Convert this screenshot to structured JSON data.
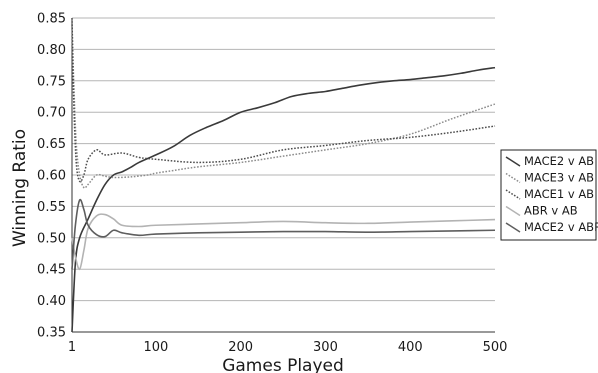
{
  "chart_data": {
    "type": "line",
    "title": "",
    "xlabel": "Games Played",
    "ylabel": "Winning Ratio",
    "xlim": [
      1,
      500
    ],
    "ylim": [
      0.35,
      0.85
    ],
    "xticks": [
      1,
      100,
      200,
      300,
      400,
      500
    ],
    "yticks": [
      0.35,
      0.4,
      0.45,
      0.5,
      0.55,
      0.6,
      0.65,
      0.7,
      0.75,
      0.8,
      0.85
    ],
    "grid": "horizontal",
    "legend_position": "right",
    "series": [
      {
        "name": "MACE2 v AB",
        "color": "#3a3a3a",
        "style": "solid",
        "x": [
          1,
          5,
          10,
          20,
          30,
          40,
          50,
          60,
          70,
          80,
          100,
          120,
          140,
          160,
          180,
          200,
          220,
          240,
          260,
          280,
          300,
          320,
          340,
          360,
          380,
          400,
          420,
          440,
          460,
          480,
          500
        ],
        "y": [
          0.35,
          0.46,
          0.5,
          0.53,
          0.56,
          0.585,
          0.6,
          0.605,
          0.612,
          0.62,
          0.632,
          0.645,
          0.663,
          0.676,
          0.687,
          0.7,
          0.707,
          0.715,
          0.725,
          0.73,
          0.733,
          0.738,
          0.743,
          0.747,
          0.75,
          0.752,
          0.755,
          0.758,
          0.762,
          0.767,
          0.771
        ]
      },
      {
        "name": "MACE3 v AB",
        "color": "#8c8c8c",
        "style": "dotted",
        "x": [
          1,
          3,
          6,
          10,
          15,
          20,
          30,
          40,
          50,
          70,
          90,
          100,
          120,
          150,
          200,
          250,
          300,
          350,
          400,
          450,
          500
        ],
        "y": [
          0.84,
          0.75,
          0.65,
          0.6,
          0.58,
          0.585,
          0.6,
          0.598,
          0.596,
          0.597,
          0.6,
          0.603,
          0.607,
          0.613,
          0.62,
          0.63,
          0.64,
          0.65,
          0.665,
          0.69,
          0.713
        ]
      },
      {
        "name": "MACE1 v AB",
        "color": "#4d4d4d",
        "style": "dotted",
        "x": [
          1,
          3,
          6,
          10,
          15,
          20,
          30,
          40,
          60,
          80,
          100,
          150,
          200,
          250,
          300,
          350,
          400,
          450,
          500
        ],
        "y": [
          0.85,
          0.72,
          0.62,
          0.59,
          0.6,
          0.625,
          0.64,
          0.632,
          0.635,
          0.628,
          0.625,
          0.62,
          0.625,
          0.64,
          0.647,
          0.655,
          0.66,
          0.668,
          0.678
        ]
      },
      {
        "name": "ABR v AB",
        "color": "#b3b3b3",
        "style": "solid",
        "x": [
          1,
          5,
          10,
          15,
          20,
          30,
          40,
          50,
          60,
          80,
          100,
          150,
          200,
          250,
          300,
          350,
          400,
          450,
          500
        ],
        "y": [
          0.5,
          0.47,
          0.45,
          0.48,
          0.515,
          0.535,
          0.537,
          0.53,
          0.52,
          0.518,
          0.52,
          0.522,
          0.524,
          0.526,
          0.524,
          0.523,
          0.525,
          0.527,
          0.529
        ]
      },
      {
        "name": "MACE2 v ABR",
        "color": "#5e5e5e",
        "style": "solid",
        "x": [
          1,
          5,
          10,
          15,
          20,
          30,
          40,
          50,
          60,
          80,
          100,
          150,
          200,
          250,
          300,
          350,
          400,
          450,
          500
        ],
        "y": [
          0.45,
          0.52,
          0.56,
          0.545,
          0.52,
          0.505,
          0.502,
          0.512,
          0.508,
          0.504,
          0.506,
          0.508,
          0.509,
          0.51,
          0.51,
          0.509,
          0.51,
          0.511,
          0.512
        ]
      }
    ]
  }
}
